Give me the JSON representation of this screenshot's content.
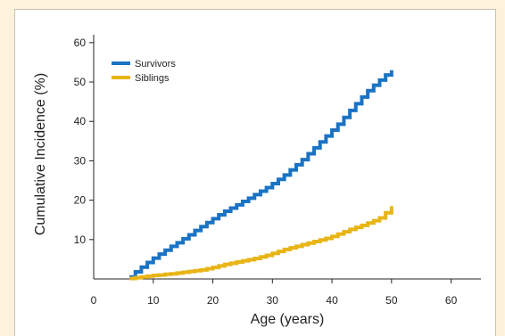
{
  "chart_data": {
    "type": "line",
    "title": "",
    "xlabel": "Age (years)",
    "ylabel": "Cumulative Incidence (%)",
    "xlim": [
      0,
      65
    ],
    "ylim": [
      0,
      62
    ],
    "xticks": [
      0,
      10,
      20,
      30,
      40,
      50,
      60
    ],
    "yticks": [
      10,
      20,
      30,
      40,
      50,
      60
    ],
    "grid": false,
    "legend_position": "top-left",
    "series": [
      {
        "name": "Survivors",
        "color": "#1a73c4",
        "x": [
          6,
          7,
          8,
          9,
          10,
          11,
          12,
          13,
          14,
          15,
          16,
          17,
          18,
          19,
          20,
          21,
          22,
          23,
          24,
          25,
          26,
          27,
          28,
          29,
          30,
          31,
          32,
          33,
          34,
          35,
          36,
          37,
          38,
          39,
          40,
          41,
          42,
          43,
          44,
          45,
          46,
          47,
          48,
          49,
          50
        ],
        "y": [
          0.5,
          1.8,
          3.0,
          4.2,
          5.3,
          6.3,
          7.3,
          8.3,
          9.2,
          10.2,
          11.2,
          12.3,
          13.3,
          14.3,
          15.3,
          16.3,
          17.2,
          18.0,
          18.8,
          19.7,
          20.5,
          21.4,
          22.3,
          23.2,
          24.2,
          25.3,
          26.4,
          27.7,
          29.0,
          30.3,
          31.8,
          33.3,
          34.8,
          36.3,
          37.8,
          39.3,
          41.0,
          42.8,
          44.5,
          46.2,
          47.8,
          49.2,
          50.5,
          51.8,
          53.0
        ]
      },
      {
        "name": "Siblings",
        "color": "#e8b516",
        "x": [
          6,
          7,
          8,
          9,
          10,
          11,
          12,
          13,
          14,
          15,
          16,
          17,
          18,
          19,
          20,
          21,
          22,
          23,
          24,
          25,
          26,
          27,
          28,
          29,
          30,
          31,
          32,
          33,
          34,
          35,
          36,
          37,
          38,
          39,
          40,
          41,
          42,
          43,
          44,
          45,
          46,
          47,
          48,
          49,
          50
        ],
        "y": [
          0.1,
          0.3,
          0.5,
          0.7,
          0.9,
          1.0,
          1.2,
          1.3,
          1.5,
          1.7,
          1.9,
          2.1,
          2.3,
          2.6,
          2.9,
          3.3,
          3.7,
          4.0,
          4.3,
          4.6,
          4.9,
          5.2,
          5.6,
          6.0,
          6.5,
          7.0,
          7.5,
          7.9,
          8.3,
          8.7,
          9.1,
          9.5,
          9.9,
          10.3,
          10.8,
          11.4,
          12.0,
          12.6,
          13.1,
          13.6,
          14.2,
          14.8,
          15.5,
          16.8,
          18.5
        ]
      }
    ]
  }
}
